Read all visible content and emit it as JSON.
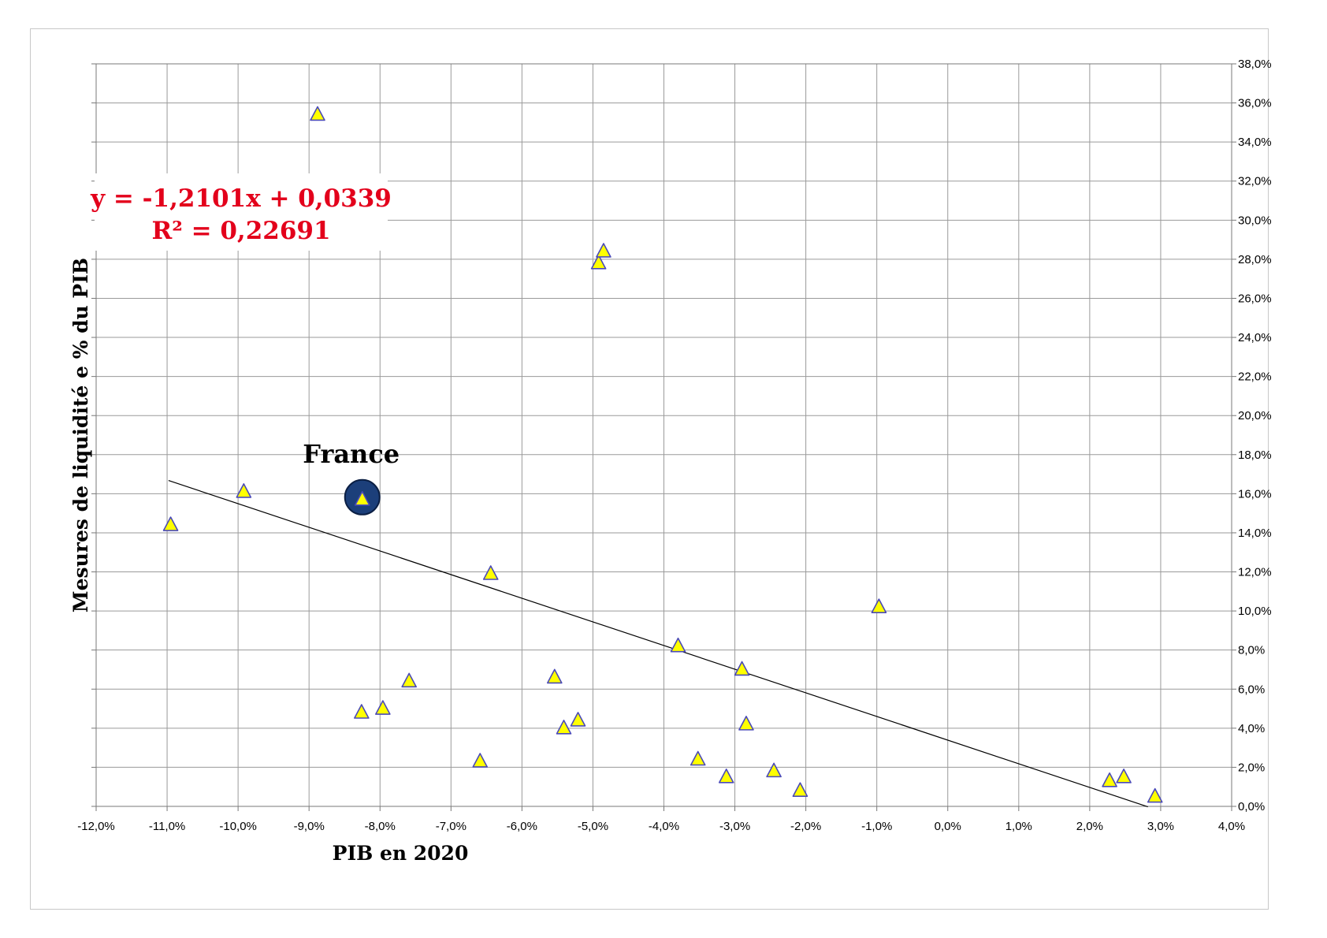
{
  "chart_data": {
    "type": "scatter",
    "title": "",
    "xlabel": "PIB en 2020",
    "ylabel": "Mesures de liquidité e % du PIB",
    "xlim": [
      -0.12,
      0.04
    ],
    "ylim": [
      0,
      0.38
    ],
    "x_ticks": [
      "-12,0%",
      "-11,0%",
      "-10,0%",
      "-9,0%",
      "-8,0%",
      "-7,0%",
      "-6,0%",
      "-5,0%",
      "-4,0%",
      "-3,0%",
      "-2,0%",
      "-1,0%",
      "0,0%",
      "1,0%",
      "2,0%",
      "3,0%",
      "4,0%"
    ],
    "y_ticks": [
      "0,0%",
      "2,0%",
      "4,0%",
      "6,0%",
      "8,0%",
      "10,0%",
      "12,0%",
      "14,0%",
      "16,0%",
      "18,0%",
      "20,0%",
      "22,0%",
      "24,0%",
      "26,0%",
      "28,0%",
      "30,0%",
      "32,0%",
      "34,0%",
      "36,0%",
      "38,0%"
    ],
    "y_axis_side": "right",
    "grid": true,
    "legend": "none",
    "marker": "triangle",
    "marker_color": "#ffff00",
    "marker_edge_color": "#4a4ab8",
    "series": [
      {
        "points": [
          {
            "x": -0.1095,
            "y": 0.144
          },
          {
            "x": -0.0992,
            "y": 0.161
          },
          {
            "x": -0.0888,
            "y": 0.354
          },
          {
            "x": -0.0825,
            "y": 0.157
          },
          {
            "x": -0.0826,
            "y": 0.048
          },
          {
            "x": -0.0796,
            "y": 0.05
          },
          {
            "x": -0.0759,
            "y": 0.064
          },
          {
            "x": -0.0659,
            "y": 0.023
          },
          {
            "x": -0.0644,
            "y": 0.119
          },
          {
            "x": -0.0554,
            "y": 0.066
          },
          {
            "x": -0.0541,
            "y": 0.04
          },
          {
            "x": -0.0521,
            "y": 0.044
          },
          {
            "x": -0.0492,
            "y": 0.278
          },
          {
            "x": -0.0485,
            "y": 0.284
          },
          {
            "x": -0.038,
            "y": 0.082
          },
          {
            "x": -0.0352,
            "y": 0.024
          },
          {
            "x": -0.0312,
            "y": 0.015
          },
          {
            "x": -0.029,
            "y": 0.07
          },
          {
            "x": -0.0284,
            "y": 0.042
          },
          {
            "x": -0.0245,
            "y": 0.018
          },
          {
            "x": -0.0208,
            "y": 0.008
          },
          {
            "x": -0.0097,
            "y": 0.102
          },
          {
            "x": 0.0228,
            "y": 0.013
          },
          {
            "x": 0.0248,
            "y": 0.015
          },
          {
            "x": 0.0292,
            "y": 0.005
          }
        ]
      }
    ],
    "trendline": {
      "type": "linear",
      "slope": -1.2101,
      "intercept": 0.0339,
      "x_range": [
        -0.1098,
        0.0282
      ],
      "color": "#000000",
      "equation_lines": [
        "y = -1,2101x + 0,0339",
        "R² = 0,22691"
      ],
      "equation_color": "#e3001b"
    },
    "annotations": [
      {
        "text": "France",
        "x": -0.0825,
        "y": 0.157,
        "highlight_color": "#1c3f7a"
      }
    ]
  }
}
